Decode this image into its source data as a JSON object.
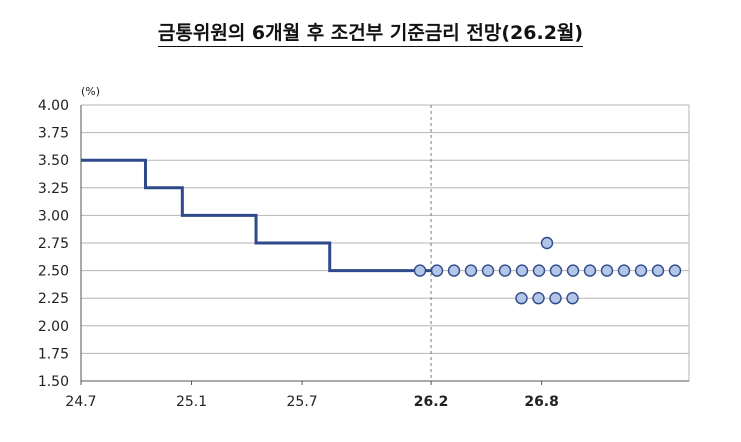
{
  "chart_data": {
    "type": "scatter",
    "title": "금통위원의 6개월 후 조건부 기준금리 전망(26.2월)",
    "ylabel": "(%)",
    "ylim": [
      1.5,
      4.0
    ],
    "yticks": [
      "4.00",
      "3.75",
      "3.50",
      "3.25",
      "3.00",
      "2.75",
      "2.50",
      "2.25",
      "2.00",
      "1.75",
      "1.50"
    ],
    "xticks": [
      {
        "label": "24.7",
        "month": 0,
        "bold": false
      },
      {
        "label": "25.1",
        "month": 6,
        "bold": false
      },
      {
        "label": "25.7",
        "month": 12,
        "bold": false
      },
      {
        "label": "26.2",
        "month": 19,
        "bold": true
      },
      {
        "label": "26.8",
        "month": 25,
        "bold": true
      }
    ],
    "xlim": [
      0,
      33
    ],
    "divider_month": 19,
    "grid": true,
    "base_rate_path": [
      {
        "from": 0,
        "to": 3.5,
        "rate": 3.5
      },
      {
        "from": 3.5,
        "to": 5.5,
        "rate": 3.25
      },
      {
        "from": 5.5,
        "to": 9.5,
        "rate": 3.0
      },
      {
        "from": 9.5,
        "to": 13.5,
        "rate": 2.75
      },
      {
        "from": 13.5,
        "to": 19,
        "rate": 2.5
      }
    ],
    "projections": [
      {
        "rate": 2.75,
        "count": 1
      },
      {
        "rate": 2.5,
        "count": 16
      },
      {
        "rate": 2.25,
        "count": 4
      }
    ],
    "colors": {
      "line": "#2e4a8a",
      "dot_fill": "#b3c6e7",
      "dot_stroke": "#2e4a8a",
      "grid": "#b5b5b5",
      "divider": "#7a7a7a"
    }
  }
}
